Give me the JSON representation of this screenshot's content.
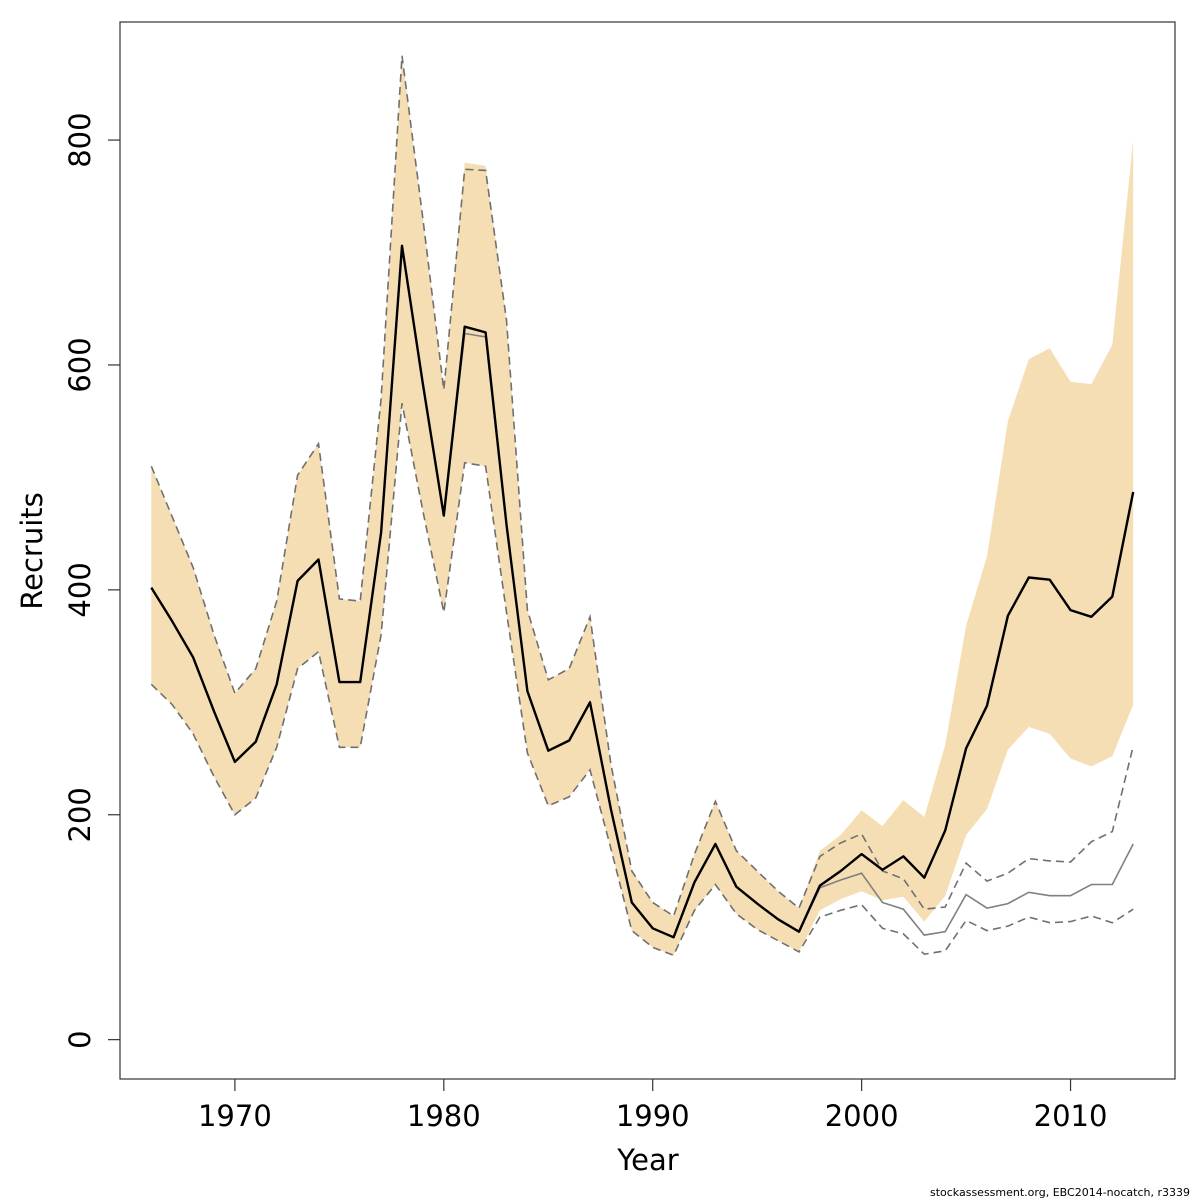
{
  "chart_data": {
    "type": "line",
    "title": "",
    "xlabel": "Year",
    "ylabel": "Recruits",
    "xlim": [
      1964.5,
      2015
    ],
    "ylim": [
      -35,
      905
    ],
    "xticks": [
      1970,
      1980,
      1990,
      2000,
      2010
    ],
    "yticks": [
      0,
      200,
      400,
      600,
      800
    ],
    "grid": false,
    "legend": "none",
    "colors": {
      "band": "#f5deb3",
      "main": "#000000",
      "ref": "#808080",
      "dash": "#707070",
      "frame": "#333333"
    },
    "x": [
      1966,
      1967,
      1968,
      1969,
      1970,
      1971,
      1972,
      1973,
      1974,
      1975,
      1976,
      1977,
      1978,
      1979,
      1980,
      1981,
      1982,
      1983,
      1984,
      1985,
      1986,
      1987,
      1988,
      1989,
      1990,
      1991,
      1992,
      1993,
      1994,
      1995,
      1996,
      1997,
      1998,
      1999,
      2000,
      2001,
      2002,
      2003,
      2004,
      2005,
      2006,
      2007,
      2008,
      2009,
      2010,
      2011,
      2012,
      2013
    ],
    "series": [
      {
        "role": "band",
        "upper": [
          510,
          465,
          420,
          360,
          308,
          330,
          390,
          502,
          530,
          392,
          390,
          570,
          875,
          730,
          578,
          780,
          777,
          640,
          382,
          320,
          330,
          376,
          245,
          150,
          122,
          110,
          165,
          212,
          168,
          150,
          132,
          117,
          168,
          182,
          204,
          190,
          213,
          198,
          262,
          368,
          430,
          550,
          605,
          615,
          585,
          583,
          618,
          800
        ],
        "lower": [
          316,
          298,
          272,
          234,
          200,
          215,
          260,
          330,
          345,
          260,
          260,
          360,
          566,
          470,
          380,
          513,
          510,
          380,
          255,
          208,
          216,
          240,
          170,
          97,
          82,
          75,
          115,
          138,
          112,
          98,
          88,
          78,
          115,
          125,
          132,
          124,
          127,
          105,
          128,
          182,
          205,
          258,
          278,
          272,
          250,
          243,
          252,
          298
        ]
      },
      {
        "role": "main",
        "values": [
          402,
          372,
          340,
          292,
          247,
          265,
          316,
          408,
          427,
          318,
          318,
          451,
          706,
          583,
          466,
          634,
          629,
          458,
          310,
          257,
          266,
          300,
          205,
          122,
          99,
          91,
          140,
          174,
          136,
          121,
          107,
          96,
          137,
          150,
          165,
          151,
          163,
          144,
          186,
          259,
          297,
          377,
          411,
          409,
          382,
          376,
          394,
          487
        ]
      },
      {
        "role": "ref",
        "values": [
          402,
          372,
          340,
          292,
          247,
          265,
          316,
          408,
          427,
          318,
          318,
          451,
          706,
          583,
          466,
          628,
          625,
          458,
          310,
          257,
          266,
          300,
          205,
          122,
          99,
          91,
          140,
          174,
          136,
          121,
          107,
          96,
          135,
          142,
          148,
          122,
          116,
          93,
          96,
          129,
          117,
          121,
          131,
          128,
          128,
          138,
          138,
          174
        ]
      },
      {
        "role": "ref_upper",
        "values": [
          510,
          465,
          420,
          360,
          308,
          330,
          390,
          502,
          530,
          392,
          390,
          570,
          875,
          730,
          578,
          774,
          773,
          640,
          382,
          320,
          330,
          376,
          245,
          150,
          122,
          110,
          165,
          212,
          168,
          150,
          132,
          117,
          163,
          175,
          183,
          150,
          143,
          116,
          118,
          157,
          141,
          148,
          161,
          159,
          158,
          176,
          185,
          261
        ]
      },
      {
        "role": "ref_lower",
        "values": [
          316,
          298,
          272,
          234,
          200,
          215,
          260,
          330,
          345,
          260,
          260,
          360,
          566,
          470,
          380,
          513,
          510,
          380,
          255,
          208,
          216,
          240,
          170,
          97,
          82,
          75,
          115,
          138,
          112,
          98,
          88,
          78,
          109,
          115,
          120,
          99,
          94,
          76,
          79,
          106,
          97,
          101,
          109,
          104,
          105,
          110,
          104,
          116
        ]
      }
    ]
  },
  "footnote": "stockassessment.org, EBC2014-nocatch, r3339"
}
